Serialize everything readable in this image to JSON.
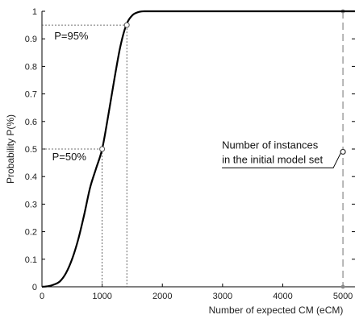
{
  "chart_data": {
    "type": "line",
    "title": "",
    "xlabel": "Number of expected CM (eCM)",
    "ylabel": "Probability P(%)",
    "xlim": [
      0,
      5200
    ],
    "ylim": [
      0,
      1
    ],
    "x_ticks": [
      0,
      1000,
      2000,
      3000,
      4000,
      5000
    ],
    "y_ticks": [
      0,
      0.1,
      0.2,
      0.3,
      0.4,
      0.5,
      0.6,
      0.7,
      0.8,
      0.9,
      1
    ],
    "x_tick_labels": [
      "0",
      "1000",
      "2000",
      "3000",
      "4000",
      "5000"
    ],
    "y_tick_labels": [
      "0",
      "0.1",
      "0.2",
      "0.3",
      "0.4",
      "0.5",
      "0.6",
      "0.7",
      "0.8",
      "0.9",
      "1"
    ],
    "grid": false,
    "series": [
      {
        "x": [
          0,
          100,
          200,
          300,
          400,
          500,
          600,
          700,
          800,
          900,
          1000,
          1100,
          1200,
          1300,
          1400,
          1500,
          1600,
          1700,
          1800,
          2000,
          3000,
          4000,
          5000,
          5200
        ],
        "y": [
          0,
          0.002,
          0.008,
          0.02,
          0.05,
          0.1,
          0.17,
          0.26,
          0.36,
          0.43,
          0.5,
          0.62,
          0.75,
          0.87,
          0.95,
          0.985,
          0.997,
          1,
          1,
          1,
          1,
          1,
          1,
          1
        ]
      }
    ],
    "markers": [
      {
        "label": "P=50%",
        "x": 1000,
        "y": 0.5
      },
      {
        "label": "P=95%",
        "x": 1410,
        "y": 0.95
      }
    ],
    "vertical_line": {
      "x": 5000,
      "style": "dashed"
    },
    "instance_point": {
      "x": 5000,
      "y": 0.49,
      "label_lines": [
        "Number of instances",
        "in the initial model set"
      ]
    }
  }
}
